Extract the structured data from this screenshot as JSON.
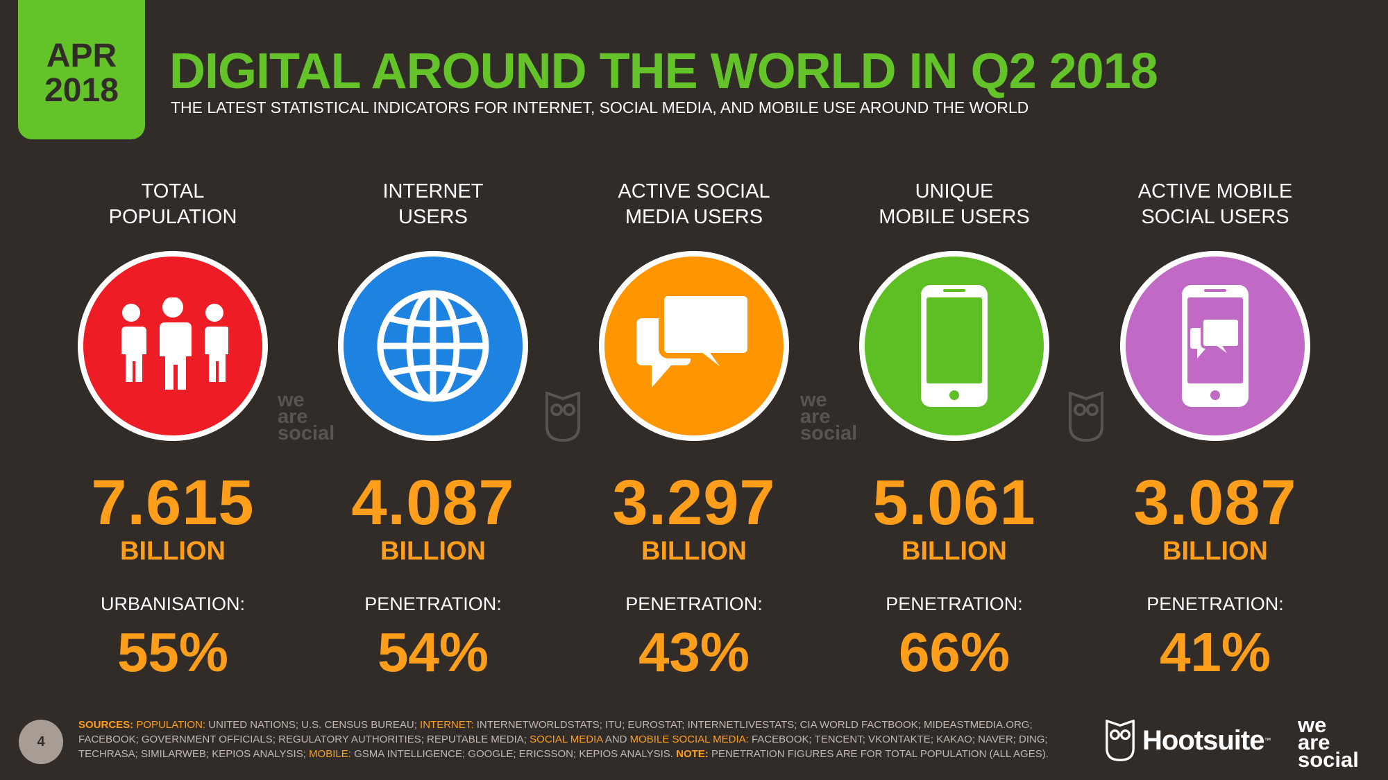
{
  "date_tab": {
    "month": "APR",
    "year": "2018"
  },
  "header": {
    "title": "DIGITAL AROUND THE WORLD IN Q2 2018",
    "subtitle": "THE LATEST STATISTICAL INDICATORS FOR INTERNET, SOCIAL MEDIA, AND MOBILE USE AROUND THE WORLD"
  },
  "columns": [
    {
      "label_line1": "TOTAL",
      "label_line2": "POPULATION",
      "icon": "people-icon",
      "color": "#ee1c24",
      "value": "7.615",
      "unit": "BILLION",
      "metric_label": "URBANISATION:",
      "metric_value": "55%"
    },
    {
      "label_line1": "INTERNET",
      "label_line2": "USERS",
      "icon": "globe-icon",
      "color": "#1d82e0",
      "value": "4.087",
      "unit": "BILLION",
      "metric_label": "PENETRATION:",
      "metric_value": "54%"
    },
    {
      "label_line1": "ACTIVE SOCIAL",
      "label_line2": "MEDIA USERS",
      "icon": "chat-bubbles-icon",
      "color": "#ff9500",
      "value": "3.297",
      "unit": "BILLION",
      "metric_label": "PENETRATION:",
      "metric_value": "43%"
    },
    {
      "label_line1": "UNIQUE",
      "label_line2": "MOBILE USERS",
      "icon": "mobile-phone-icon",
      "color": "#5ebf25",
      "value": "5.061",
      "unit": "BILLION",
      "metric_label": "PENETRATION:",
      "metric_value": "66%"
    },
    {
      "label_line1": "ACTIVE MOBILE",
      "label_line2": "SOCIAL USERS",
      "icon": "mobile-chat-icon",
      "color": "#c06ac6",
      "value": "3.087",
      "unit": "BILLION",
      "metric_label": "PENETRATION:",
      "metric_value": "41%"
    }
  ],
  "watermarks": {
    "we": "we",
    "are": "are",
    "social": "social"
  },
  "footer": {
    "page_number": "4",
    "sources_label": "SOURCES:",
    "pop_label": "POPULATION:",
    "pop_text": "UNITED NATIONS; U.S. CENSUS BUREAU;",
    "internet_label": "INTERNET:",
    "internet_text": "INTERNETWORLDSTATS; ITU; EUROSTAT; INTERNETLIVESTATS; CIA WORLD FACTBOOK; MIDEASTMEDIA.ORG; FACEBOOK; GOVERNMENT OFFICIALS; REGULATORY AUTHORITIES; REPUTABLE MEDIA;",
    "social_label": "SOCIAL MEDIA",
    "and_text": "AND",
    "mobile_social_label": "MOBILE SOCIAL MEDIA:",
    "social_text": "FACEBOOK; TENCENT; VKONTAKTE; KAKAO; NAVER; DING; TECHRASA; SIMILARWEB; KEPIOS ANALYSIS;",
    "mobile_label": "MOBILE:",
    "mobile_text": "GSMA INTELLIGENCE; GOOGLE; ERICSSON; KEPIOS ANALYSIS.",
    "note_label": "NOTE:",
    "note_text": "PENETRATION FIGURES ARE FOR TOTAL POPULATION (ALL AGES).",
    "hootsuite": "Hootsuite",
    "hootsuite_tm": "™",
    "was_we": "we",
    "was_are": "are",
    "was_social": "social"
  },
  "colors": {
    "background": "#322c29",
    "accent_green": "#64c328",
    "accent_orange": "#ff9e1b"
  }
}
